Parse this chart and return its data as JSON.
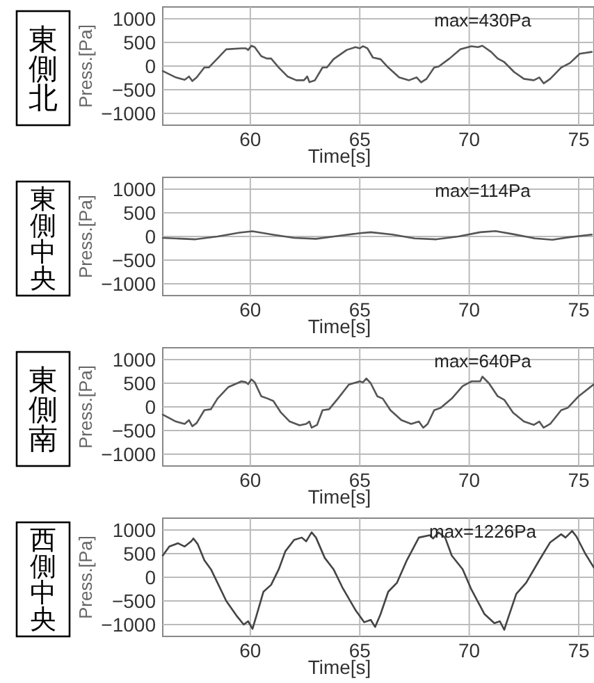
{
  "chart_data": [
    {
      "type": "line",
      "title": "東側北",
      "xlabel": "Time[s]",
      "ylabel": "Press.[Pa]",
      "annotations": [
        "max=430Pa"
      ],
      "xlim": [
        56,
        75.7
      ],
      "ylim": [
        -1250,
        1250
      ],
      "xticks": [
        60,
        65,
        70,
        75
      ],
      "yticks": [
        -1000,
        -500,
        0,
        500,
        1000
      ],
      "grid": true,
      "color": "#555555",
      "x": [
        56.0,
        56.6,
        57.0,
        57.2,
        57.35,
        57.55,
        57.9,
        58.1,
        58.5,
        58.9,
        59.6,
        59.8,
        59.9,
        60.05,
        60.2,
        60.5,
        60.75,
        60.95,
        61.3,
        61.7,
        62.1,
        62.45,
        62.6,
        62.7,
        62.95,
        63.3,
        63.5,
        63.8,
        64.4,
        64.8,
        65.0,
        65.15,
        65.35,
        65.6,
        65.95,
        66.3,
        66.8,
        67.25,
        67.6,
        67.8,
        68.05,
        68.4,
        68.6,
        69.1,
        69.6,
        70.1,
        70.4,
        70.6,
        71.0,
        71.3,
        71.6,
        72.05,
        72.5,
        72.95,
        73.2,
        73.4,
        73.7,
        74.2,
        74.6,
        75.05,
        75.6
      ],
      "values": [
        -106,
        -240,
        -290,
        -220,
        -317,
        -240,
        -30,
        -30,
        160,
        355,
        375,
        375,
        340,
        430,
        400,
        210,
        160,
        160,
        -30,
        -220,
        -300,
        -300,
        -220,
        -340,
        -300,
        -30,
        -30,
        145,
        340,
        400,
        375,
        420,
        375,
        180,
        145,
        -30,
        -240,
        -300,
        -240,
        -345,
        -270,
        -30,
        -10,
        160,
        355,
        420,
        400,
        430,
        300,
        160,
        85,
        -125,
        -270,
        -300,
        -240,
        -365,
        -270,
        -30,
        65,
        260,
        300
      ]
    },
    {
      "type": "line",
      "title": "東側中央",
      "xlabel": "Time[s]",
      "ylabel": "Press.[Pa]",
      "annotations": [
        "max=114Pa"
      ],
      "xlim": [
        56,
        75.7
      ],
      "ylim": [
        -1250,
        1250
      ],
      "xticks": [
        60,
        65,
        70,
        75
      ],
      "yticks": [
        -1000,
        -500,
        0,
        500,
        1000
      ],
      "grid": true,
      "color": "#555555",
      "x": [
        56.0,
        57.5,
        58.5,
        59.5,
        60.1,
        61.0,
        62.0,
        63.0,
        64.0,
        65.0,
        65.5,
        66.5,
        67.5,
        68.5,
        69.5,
        70.5,
        71.2,
        72.0,
        73.0,
        73.8,
        74.5,
        75.6
      ],
      "values": [
        -30,
        -60,
        0,
        80,
        110,
        40,
        -30,
        -50,
        10,
        70,
        90,
        40,
        -40,
        -60,
        0,
        90,
        114,
        50,
        -40,
        -70,
        -20,
        40
      ]
    },
    {
      "type": "line",
      "title": "東側南",
      "xlabel": "Time[s]",
      "ylabel": "Press.[Pa]",
      "annotations": [
        "max=640Pa"
      ],
      "xlim": [
        56,
        75.7
      ],
      "ylim": [
        -1250,
        1250
      ],
      "xticks": [
        60,
        65,
        70,
        75
      ],
      "yticks": [
        -1000,
        -500,
        0,
        500,
        1000
      ],
      "grid": true,
      "color": "#555555",
      "x": [
        56.0,
        56.6,
        57.0,
        57.2,
        57.35,
        57.55,
        57.9,
        58.2,
        58.5,
        59.0,
        59.6,
        59.8,
        59.9,
        60.05,
        60.2,
        60.5,
        60.8,
        61.05,
        61.4,
        61.8,
        62.25,
        62.55,
        62.7,
        62.8,
        63.05,
        63.3,
        63.6,
        64.0,
        64.5,
        65.0,
        65.15,
        65.3,
        65.5,
        65.8,
        66.05,
        66.4,
        66.9,
        67.35,
        67.7,
        67.9,
        68.1,
        68.4,
        68.7,
        69.2,
        69.7,
        70.1,
        70.5,
        70.6,
        70.9,
        71.3,
        71.6,
        72.0,
        72.5,
        72.95,
        73.2,
        73.4,
        73.7,
        74.2,
        74.5,
        75.0,
        75.7
      ],
      "values": [
        -165,
        -310,
        -360,
        -280,
        -410,
        -340,
        -70,
        -50,
        175,
        420,
        540,
        520,
        480,
        580,
        520,
        225,
        175,
        125,
        -120,
        -310,
        -390,
        -360,
        -310,
        -440,
        -380,
        -70,
        -50,
        175,
        470,
        540,
        520,
        600,
        500,
        225,
        175,
        -70,
        -280,
        -360,
        -310,
        -440,
        -360,
        -70,
        -20,
        175,
        440,
        540,
        540,
        640,
        500,
        225,
        150,
        -120,
        -310,
        -380,
        -310,
        -440,
        -360,
        -70,
        -20,
        225,
        480
      ]
    },
    {
      "type": "line",
      "title": "西側中央",
      "xlabel": "Time[s]",
      "ylabel": "Press.[Pa]",
      "annotations": [
        "max=1226Pa"
      ],
      "xlim": [
        56,
        75.7
      ],
      "ylim": [
        -1250,
        1250
      ],
      "xticks": [
        60,
        65,
        70,
        75
      ],
      "yticks": [
        -1000,
        -500,
        0,
        500,
        1000
      ],
      "grid": true,
      "color": "#444444",
      "x": [
        56.0,
        56.3,
        56.7,
        57.0,
        57.3,
        57.4,
        57.6,
        57.9,
        58.2,
        58.5,
        58.9,
        59.4,
        59.7,
        59.9,
        60.1,
        60.3,
        60.6,
        60.95,
        61.3,
        61.6,
        62.0,
        62.35,
        62.55,
        62.8,
        63.0,
        63.4,
        63.8,
        64.2,
        64.8,
        65.2,
        65.5,
        65.7,
        65.95,
        66.3,
        66.7,
        67.15,
        67.7,
        68.2,
        68.35,
        68.6,
        68.9,
        69.2,
        69.7,
        70.1,
        70.7,
        71.15,
        71.4,
        71.6,
        71.8,
        72.15,
        72.6,
        73.2,
        73.7,
        74.2,
        74.4,
        74.7,
        74.9,
        75.3,
        75.7
      ],
      "values": [
        460,
        650,
        720,
        650,
        760,
        820,
        700,
        360,
        170,
        -115,
        -500,
        -830,
        -1000,
        -930,
        -1090,
        -780,
        -305,
        -160,
        170,
        550,
        790,
        840,
        760,
        950,
        840,
        410,
        170,
        -210,
        -690,
        -950,
        -900,
        -1050,
        -780,
        -305,
        -115,
        360,
        840,
        890,
        820,
        950,
        840,
        460,
        170,
        -260,
        -780,
        -970,
        -930,
        -1110,
        -830,
        -350,
        -115,
        360,
        740,
        910,
        840,
        980,
        860,
        500,
        200
      ]
    }
  ]
}
